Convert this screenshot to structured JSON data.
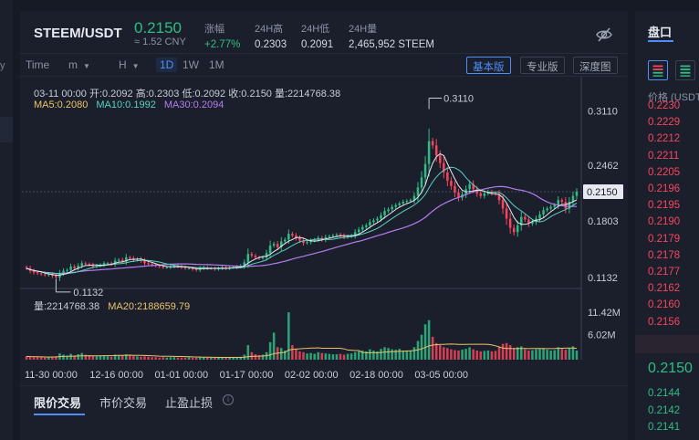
{
  "header": {
    "pair": "STEEM/USDT",
    "last_price": "0.2150",
    "cny_price": "≈ 1.52 CNY",
    "stats": [
      {
        "label": "涨幅",
        "value": "+2.77%"
      },
      {
        "label": "24H高",
        "value": "0.2303"
      },
      {
        "label": "24H低",
        "value": "0.2091"
      },
      {
        "label": "24H量",
        "value": "2,465,952 STEEM"
      }
    ]
  },
  "timeframes": {
    "time_label": "Time",
    "minute": "m",
    "hour": "H",
    "day": "1D",
    "week": "1W",
    "month": "1M"
  },
  "views": [
    "基本版",
    "专业版",
    "深度图"
  ],
  "legend": {
    "ohlc": "03-11 00:00  开:0.2092  高:0.2303  低:0.2092  收:0.2150  量:2214768.38",
    "ma5": "MA5:0.2080",
    "ma10": "MA10:0.1992",
    "ma30": "MA30:0.2094",
    "volume": "量:2214768.38",
    "ma20": "MA20:2188659.79"
  },
  "annotations": {
    "high": "0.3110",
    "low": "0.1132"
  },
  "colors": {
    "up": "#2ebd85",
    "down": "#f6465d",
    "ma5": "#e9c46a",
    "ma10": "#5ad1c1",
    "ma30": "#b57cf0",
    "accent": "#4f8ef7"
  },
  "chart_data": {
    "type": "candlestick",
    "y_ticks": [
      "0.3110",
      "0.2462",
      "0.1803",
      "0.1132"
    ],
    "ylim": [
      0.1,
      0.33
    ],
    "current_price_tag": "0.2150",
    "volume_ticks": [
      "11.42M",
      "6.02M"
    ],
    "x_ticks": [
      "11-30 00:00",
      "12-16 00:00",
      "01-01 00:00",
      "01-17 00:00",
      "02-02 00:00",
      "02-18 00:00",
      "03-05 00:00"
    ],
    "close": [
      0.124,
      0.121,
      0.119,
      0.118,
      0.117,
      0.116,
      0.117,
      0.115,
      0.113,
      0.118,
      0.121,
      0.122,
      0.126,
      0.124,
      0.127,
      0.13,
      0.129,
      0.128,
      0.126,
      0.127,
      0.128,
      0.13,
      0.13,
      0.129,
      0.133,
      0.134,
      0.132,
      0.137,
      0.136,
      0.134,
      0.135,
      0.133,
      0.13,
      0.129,
      0.128,
      0.127,
      0.126,
      0.125,
      0.125,
      0.126,
      0.127,
      0.126,
      0.125,
      0.124,
      0.124,
      0.123,
      0.122,
      0.124,
      0.125,
      0.124,
      0.124,
      0.123,
      0.124,
      0.125,
      0.124,
      0.125,
      0.125,
      0.126,
      0.127,
      0.131,
      0.141,
      0.139,
      0.137,
      0.136,
      0.137,
      0.142,
      0.151,
      0.153,
      0.149,
      0.156,
      0.158,
      0.165,
      0.163,
      0.16,
      0.157,
      0.154,
      0.155,
      0.157,
      0.158,
      0.16,
      0.158,
      0.161,
      0.162,
      0.163,
      0.164,
      0.163,
      0.161,
      0.162,
      0.163,
      0.167,
      0.17,
      0.173,
      0.175,
      0.179,
      0.181,
      0.183,
      0.187,
      0.192,
      0.194,
      0.197,
      0.199,
      0.201,
      0.203,
      0.204,
      0.205,
      0.21,
      0.22,
      0.232,
      0.248,
      0.275,
      0.27,
      0.258,
      0.249,
      0.238,
      0.228,
      0.222,
      0.214,
      0.208,
      0.212,
      0.218,
      0.224,
      0.218,
      0.213,
      0.21,
      0.213,
      0.215,
      0.213,
      0.212,
      0.205,
      0.195,
      0.183,
      0.172,
      0.167,
      0.175,
      0.185,
      0.182,
      0.177,
      0.179,
      0.183,
      0.188,
      0.193,
      0.195,
      0.197,
      0.199,
      0.205,
      0.203,
      0.195,
      0.203,
      0.21,
      0.215
    ],
    "volume": [
      0.8,
      0.7,
      0.6,
      0.7,
      0.6,
      0.5,
      0.6,
      0.7,
      0.8,
      1.5,
      1.2,
      1.0,
      1.4,
      1.0,
      1.3,
      1.6,
      1.2,
      1.0,
      0.9,
      0.8,
      0.9,
      1.0,
      0.8,
      0.7,
      1.2,
      1.1,
      1.0,
      1.3,
      1.0,
      0.9,
      0.8,
      0.7,
      0.8,
      0.7,
      0.6,
      0.6,
      0.5,
      0.6,
      0.5,
      0.6,
      0.6,
      0.5,
      0.5,
      0.5,
      0.6,
      0.5,
      0.5,
      0.6,
      0.6,
      0.5,
      0.5,
      0.5,
      0.6,
      0.6,
      0.5,
      0.6,
      0.5,
      0.6,
      0.7,
      1.2,
      3.5,
      1.8,
      1.3,
      1.1,
      1.2,
      1.8,
      4.2,
      6.5,
      3.0,
      2.8,
      2.2,
      11.4,
      3.5,
      2.5,
      2.0,
      1.8,
      1.5,
      1.6,
      1.4,
      1.8,
      1.6,
      1.5,
      1.4,
      1.3,
      1.3,
      1.4,
      1.2,
      1.4,
      1.5,
      1.8,
      2.0,
      2.2,
      2.0,
      2.5,
      2.2,
      2.0,
      2.6,
      3.0,
      2.8,
      2.5,
      2.4,
      2.6,
      2.2,
      2.0,
      2.1,
      3.0,
      4.5,
      6.0,
      8.5,
      9.5,
      5.5,
      4.0,
      3.5,
      3.0,
      2.8,
      2.5,
      2.3,
      2.2,
      2.4,
      2.6,
      3.0,
      2.5,
      2.2,
      2.0,
      2.1,
      2.2,
      2.0,
      2.1,
      3.0,
      3.8,
      4.0,
      3.5,
      2.8,
      3.0,
      3.2,
      2.5,
      2.2,
      2.3,
      2.5,
      2.6,
      2.8,
      2.4,
      2.2,
      2.3,
      3.0,
      2.6,
      2.4,
      2.8,
      3.2,
      2.2
    ]
  },
  "order_tabs": [
    "限价交易",
    "市价交易",
    "止盈止损"
  ],
  "orderbook": {
    "title": "盘口",
    "price_header": "价格 (USDT)",
    "asks": [
      "0.2230",
      "0.2229",
      "0.2212",
      "0.2211",
      "0.2205",
      "0.2196",
      "0.2195",
      "0.2190",
      "0.2179",
      "0.2178",
      "0.2177",
      "0.2162",
      "0.2160",
      "0.2156"
    ],
    "last": "0.2150",
    "bids": [
      "0.2144",
      "0.2142",
      "0.2141"
    ]
  }
}
